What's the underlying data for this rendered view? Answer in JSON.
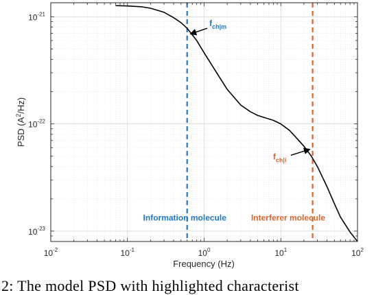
{
  "chart_data": {
    "type": "line",
    "xscale": "log",
    "yscale": "log",
    "xlim": [
      0.01,
      100
    ],
    "ylim": [
      8e-24,
      1.35e-21
    ],
    "xlabel": "Frequency (Hz)",
    "ylabel": "PSD (A",
    "ylabel_sup": "2",
    "ylabel_tail": "/Hz)",
    "grid": true,
    "x_ticks": [
      {
        "value": 0.01,
        "base": "10",
        "exp": "-2"
      },
      {
        "value": 0.1,
        "base": "10",
        "exp": "-1"
      },
      {
        "value": 1,
        "base": "10",
        "exp": "0"
      },
      {
        "value": 10,
        "base": "10",
        "exp": "1"
      },
      {
        "value": 100,
        "base": "10",
        "exp": "2"
      }
    ],
    "y_ticks": [
      {
        "value": 1e-23,
        "base": "10",
        "exp": "-23"
      },
      {
        "value": 1e-22,
        "base": "10",
        "exp": "-22"
      },
      {
        "value": 1e-21,
        "base": "10",
        "exp": "-21"
      }
    ],
    "series": [
      {
        "color": "#000000",
        "x": [
          0.07,
          0.1,
          0.15,
          0.2,
          0.3,
          0.4,
          0.5,
          0.6,
          0.8,
          1,
          1.5,
          2,
          3,
          4,
          5,
          6,
          8,
          10,
          13,
          16,
          20,
          25,
          30,
          40,
          50,
          60,
          80,
          100
        ],
        "y": [
          1.27e-21,
          1.26e-21,
          1.24e-21,
          1.2e-21,
          1.1e-21,
          9.8e-22,
          8.8e-22,
          7.8e-22,
          6e-22,
          4.6e-22,
          2.9e-22,
          2.1e-22,
          1.5e-22,
          1.3e-22,
          1.2e-22,
          1.15e-22,
          1.08e-22,
          1e-22,
          8.7e-23,
          7.4e-23,
          6.2e-23,
          5e-23,
          4e-23,
          2.6e-23,
          1.8e-23,
          1.35e-23,
          9.8e-24,
          8e-24
        ]
      }
    ],
    "vlines": [
      {
        "x": 0.6,
        "color": "#1f77c4",
        "style": "dashed"
      },
      {
        "x": 26,
        "color": "#d9632b",
        "style": "dashed"
      }
    ],
    "annotations": [
      {
        "label": "f",
        "sub": "ch|m",
        "color": "#1f77c4",
        "arrow_from": [
          1.1,
          7.8e-22
        ],
        "arrow_to": [
          0.66,
          6.9e-22
        ]
      },
      {
        "label": "f",
        "sub": "ch|i",
        "color": "#d9632b",
        "arrow_from": [
          13.5,
          5.1e-23
        ],
        "arrow_to": [
          24,
          5.8e-23
        ]
      }
    ],
    "region_labels": [
      {
        "text": "Information molecule",
        "color": "#1f77c4",
        "x": 0.16,
        "y": 1.25e-23
      },
      {
        "text": "Interferer molecule",
        "color": "#d9632b",
        "x": 4.1,
        "y": 1.25e-23
      }
    ]
  },
  "caption": "2: The model PSD with highlighted characterist"
}
